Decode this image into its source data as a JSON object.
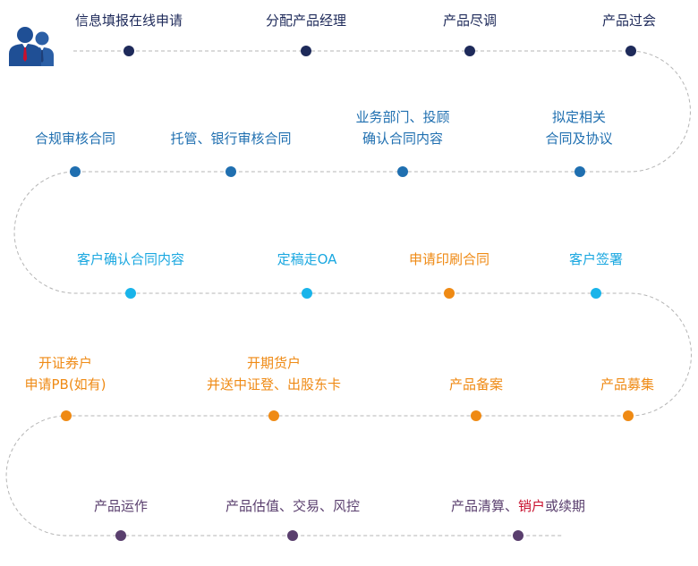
{
  "icon": "business-people-icon",
  "colors": {
    "row1": "#1e2a5a",
    "row2": "#1f6fb0",
    "row3": "#19a7e0",
    "row3_accent": "#ef8a14",
    "row4": "#ef8a14",
    "row5": "#5a3f6e",
    "highlight": "#c8102e",
    "track": "#b5b5b5"
  },
  "steps": {
    "s1": "信息填报在线申请",
    "s2": "分配产品经理",
    "s3": "产品尽调",
    "s4": "产品过会",
    "s5": "拟定相关",
    "s5b": "合同及协议",
    "s6": "业务部门、投顾",
    "s6b": "确认合同内容",
    "s7": "托管、银行审核合同",
    "s8": "合规审核合同",
    "s9": "客户确认合同内容",
    "s10": "定稿走OA",
    "s11": "申请印刷合同",
    "s12": "客户签署",
    "s13": "产品募集",
    "s14": "产品备案",
    "s15": "开期货户",
    "s15b": "并送中证登、出股东卡",
    "s16": "开证券户",
    "s16b": "申请PB(如有)",
    "s17": "产品运作",
    "s18": "产品估值、交易、风控",
    "s19a": "产品清算、",
    "s19b": "销户",
    "s19c": "或续期"
  }
}
